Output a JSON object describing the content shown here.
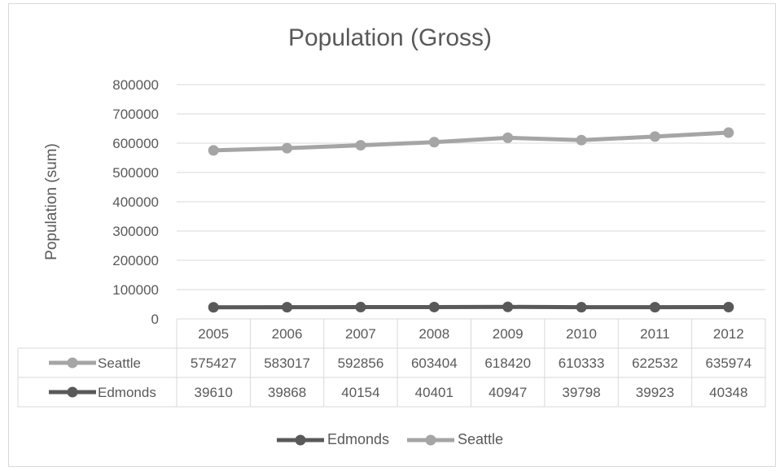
{
  "chart_data": {
    "type": "line",
    "title": "Population (Gross)",
    "ylabel": "Population (sum)",
    "xlabel": "",
    "ylim": [
      0,
      800000
    ],
    "yticks": [
      "0",
      "100000",
      "200000",
      "300000",
      "400000",
      "500000",
      "600000",
      "700000",
      "800000"
    ],
    "categories": [
      "2005",
      "2006",
      "2007",
      "2008",
      "2009",
      "2010",
      "2011",
      "2012"
    ],
    "grid": true,
    "legend_position": "bottom",
    "data_table": true,
    "series": [
      {
        "name": "Seattle",
        "color": "#a5a5a5",
        "values": [
          575427,
          583017,
          592856,
          603404,
          618420,
          610333,
          622532,
          635974
        ]
      },
      {
        "name": "Edmonds",
        "color": "#595959",
        "values": [
          39610,
          39868,
          40154,
          40401,
          40947,
          39798,
          39923,
          40348
        ]
      }
    ],
    "legend": [
      "Edmonds",
      "Seattle"
    ]
  }
}
